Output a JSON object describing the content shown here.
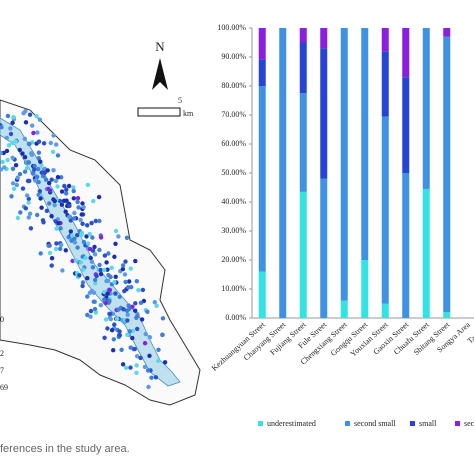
{
  "chart_data": {
    "type": "stacked-bar",
    "categories": [
      "Kezhuangyuan Street",
      "Chaoyang Street",
      "Fujiang Street",
      "Fule Street",
      "Chengxiang Street",
      "Gongqu Street",
      "Youxian Street",
      "Gaoxin Street",
      "Chuafu Street",
      "Shitang Street",
      "Songya Area",
      "Tangxun"
    ],
    "series": [
      {
        "name": "underestimated",
        "color": "#33e3e3",
        "values": [
          16,
          0,
          43.5,
          0,
          6,
          20,
          5,
          0,
          44.5,
          2,
          null,
          null
        ]
      },
      {
        "name": "second small",
        "color": "#3f92e2",
        "values": [
          64,
          100,
          34,
          48,
          94,
          80,
          64.5,
          50,
          55.5,
          95,
          null,
          null
        ]
      },
      {
        "name": "small",
        "color": "#2546d4",
        "values": [
          9,
          0,
          17.5,
          45,
          0,
          0,
          22.5,
          33,
          0,
          0,
          null,
          null
        ]
      },
      {
        "name": "secon",
        "color": "#8a1fe0",
        "values": [
          11,
          0,
          5,
          7,
          0,
          0,
          8,
          17,
          0,
          3,
          null,
          null
        ]
      }
    ],
    "ylim": [
      0,
      100
    ],
    "yticks": [
      {
        "value": 0,
        "label": "0.00%"
      },
      {
        "value": 10,
        "label": "10.00%"
      },
      {
        "value": 20,
        "label": "20.00%"
      },
      {
        "value": 30,
        "label": "30.00%"
      },
      {
        "value": 40,
        "label": "40.00%"
      },
      {
        "value": 50,
        "label": "50.00%"
      },
      {
        "value": 60,
        "label": "60.00%"
      },
      {
        "value": 70,
        "label": "70.00%"
      },
      {
        "value": 80,
        "label": "80.00%"
      },
      {
        "value": 90,
        "label": "90.00%"
      },
      {
        "value": 100,
        "label": "100.00%"
      }
    ],
    "grid": false
  },
  "map": {
    "north": "N",
    "scale": "5",
    "unit": "km",
    "legend_labels": [
      "0",
      "2",
      "7",
      "69"
    ]
  },
  "caption": "ferences in the study area."
}
